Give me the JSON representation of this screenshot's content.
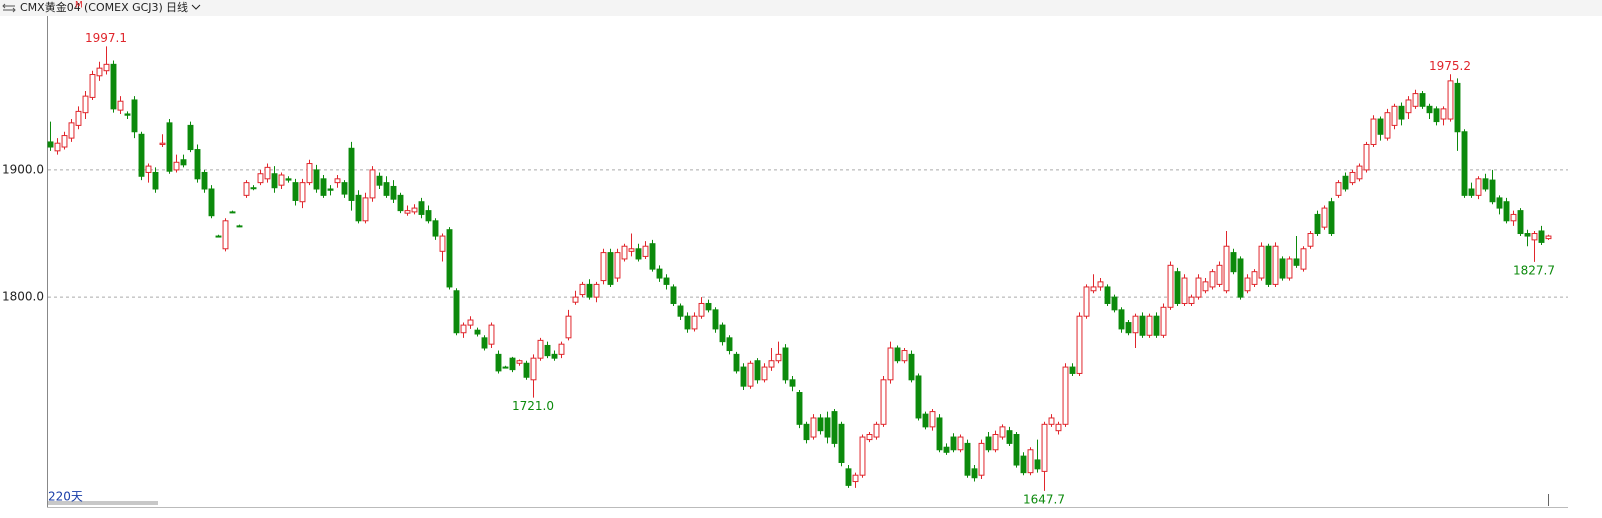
{
  "chart_data": {
    "type": "candlestick",
    "header": {
      "name": "CMX黄金04",
      "flag": "M",
      "code": "(COMEX GCJ3)",
      "period": "日线"
    },
    "period_count": "220天",
    "up_color": "#e0262c",
    "down_color": "#0c8a0c",
    "grid": true,
    "ylim": [
      1635,
      2021
    ],
    "yticks": [
      {
        "value": 1800,
        "label": "1800.0"
      },
      {
        "value": 1900,
        "label": "1900.0"
      }
    ],
    "annotations": [
      {
        "value": 1997.1,
        "label": "1997.1"
      },
      {
        "value": 1721,
        "label": "1721.0"
      },
      {
        "value": 1647.7,
        "label": "1647.7"
      },
      {
        "value": 1975.2,
        "label": "1975.2"
      },
      {
        "value": 1827.7,
        "label": "1827.7"
      }
    ],
    "candles": [
      [
        1922,
        1938,
        1915,
        1918
      ],
      [
        1915,
        1925,
        1912,
        1921
      ],
      [
        1918,
        1930,
        1916,
        1927
      ],
      [
        1925,
        1940,
        1922,
        1937
      ],
      [
        1935,
        1950,
        1932,
        1946
      ],
      [
        1945,
        1962,
        1940,
        1958
      ],
      [
        1957,
        1978,
        1955,
        1975
      ],
      [
        1974,
        1985,
        1970,
        1980
      ],
      [
        1978,
        1997.1,
        1975,
        1983
      ],
      [
        1983,
        1986,
        1945,
        1948
      ],
      [
        1947,
        1958,
        1944,
        1954
      ],
      [
        1944,
        1946,
        1940,
        1943
      ],
      [
        1955,
        1958,
        1925,
        1930
      ],
      [
        1928,
        1930,
        1892,
        1895
      ],
      [
        1898,
        1905,
        1890,
        1903
      ],
      [
        1898,
        1902,
        1882,
        1885
      ],
      [
        1920,
        1928,
        1918,
        1921
      ],
      [
        1937,
        1940,
        1897,
        1899
      ],
      [
        1900,
        1912,
        1898,
        1906
      ],
      [
        1908,
        1912,
        1902,
        1904
      ],
      [
        1935,
        1938,
        1914,
        1916
      ],
      [
        1916,
        1920,
        1890,
        1893
      ],
      [
        1898,
        1900,
        1882,
        1885
      ],
      [
        1885,
        1888,
        1862,
        1864
      ],
      [
        1848,
        1849,
        1847,
        1848
      ],
      [
        1838,
        1862,
        1836,
        1860
      ],
      [
        1867,
        1868,
        1866,
        1867
      ],
      [
        1856,
        1857,
        1855,
        1856
      ],
      [
        1880,
        1892,
        1878,
        1890
      ],
      [
        1886,
        1888,
        1884,
        1886
      ],
      [
        1890,
        1900,
        1888,
        1897
      ],
      [
        1893,
        1905,
        1890,
        1902
      ],
      [
        1897,
        1903,
        1882,
        1886
      ],
      [
        1888,
        1898,
        1885,
        1896
      ],
      [
        1893,
        1895,
        1890,
        1892
      ],
      [
        1890,
        1893,
        1872,
        1876
      ],
      [
        1875,
        1893,
        1870,
        1890
      ],
      [
        1890,
        1908,
        1888,
        1905
      ],
      [
        1900,
        1904,
        1882,
        1885
      ],
      [
        1893,
        1896,
        1878,
        1880
      ],
      [
        1885,
        1888,
        1880,
        1884
      ],
      [
        1890,
        1896,
        1886,
        1893
      ],
      [
        1890,
        1892,
        1878,
        1881
      ],
      [
        1917,
        1922,
        1868,
        1876
      ],
      [
        1880,
        1884,
        1858,
        1860
      ],
      [
        1860,
        1882,
        1858,
        1878
      ],
      [
        1878,
        1903,
        1875,
        1900
      ],
      [
        1895,
        1898,
        1885,
        1888
      ],
      [
        1890,
        1895,
        1878,
        1880
      ],
      [
        1887,
        1892,
        1874,
        1877
      ],
      [
        1880,
        1882,
        1866,
        1868
      ],
      [
        1866,
        1872,
        1864,
        1868
      ],
      [
        1867,
        1873,
        1865,
        1870
      ],
      [
        1875,
        1878,
        1862,
        1865
      ],
      [
        1868,
        1872,
        1858,
        1860
      ],
      [
        1860,
        1862,
        1845,
        1848
      ],
      [
        1836,
        1850,
        1828,
        1848
      ],
      [
        1853,
        1855,
        1806,
        1808
      ],
      [
        1805,
        1807,
        1770,
        1772
      ],
      [
        1772,
        1780,
        1768,
        1778
      ],
      [
        1778,
        1785,
        1775,
        1782
      ],
      [
        1774,
        1776,
        1769,
        1771
      ],
      [
        1768,
        1770,
        1758,
        1760
      ],
      [
        1763,
        1780,
        1760,
        1778
      ],
      [
        1755,
        1758,
        1740,
        1742
      ],
      [
        1745,
        1746,
        1744,
        1745
      ],
      [
        1752,
        1753,
        1741,
        1743
      ],
      [
        1748,
        1751,
        1746,
        1750
      ],
      [
        1748,
        1750,
        1735,
        1737
      ],
      [
        1735,
        1755,
        1721,
        1752
      ],
      [
        1752,
        1768,
        1750,
        1766
      ],
      [
        1762,
        1765,
        1752,
        1754
      ],
      [
        1755,
        1758,
        1750,
        1752
      ],
      [
        1755,
        1765,
        1752,
        1763
      ],
      [
        1768,
        1790,
        1766,
        1785
      ],
      [
        1796,
        1805,
        1794,
        1800
      ],
      [
        1802,
        1812,
        1800,
        1810
      ],
      [
        1810,
        1814,
        1798,
        1800
      ],
      [
        1800,
        1812,
        1796,
        1810
      ],
      [
        1813,
        1838,
        1810,
        1835
      ],
      [
        1835,
        1838,
        1808,
        1810
      ],
      [
        1815,
        1838,
        1812,
        1835
      ],
      [
        1830,
        1842,
        1828,
        1840
      ],
      [
        1836,
        1850,
        1832,
        1838
      ],
      [
        1838,
        1842,
        1828,
        1830
      ],
      [
        1832,
        1844,
        1830,
        1840
      ],
      [
        1842,
        1845,
        1820,
        1822
      ],
      [
        1822,
        1825,
        1812,
        1815
      ],
      [
        1815,
        1818,
        1806,
        1810
      ],
      [
        1808,
        1810,
        1793,
        1795
      ],
      [
        1793,
        1795,
        1782,
        1785
      ],
      [
        1785,
        1788,
        1772,
        1775
      ],
      [
        1775,
        1788,
        1773,
        1785
      ],
      [
        1785,
        1800,
        1783,
        1795
      ],
      [
        1795,
        1798,
        1788,
        1790
      ],
      [
        1790,
        1792,
        1772,
        1775
      ],
      [
        1778,
        1780,
        1762,
        1765
      ],
      [
        1768,
        1770,
        1755,
        1758
      ],
      [
        1755,
        1757,
        1740,
        1742
      ],
      [
        1745,
        1748,
        1727,
        1730
      ],
      [
        1730,
        1750,
        1728,
        1748
      ],
      [
        1750,
        1752,
        1732,
        1735
      ],
      [
        1735,
        1748,
        1733,
        1745
      ],
      [
        1745,
        1760,
        1742,
        1750
      ],
      [
        1750,
        1765,
        1748,
        1755
      ],
      [
        1760,
        1763,
        1732,
        1735
      ],
      [
        1735,
        1738,
        1726,
        1730
      ],
      [
        1725,
        1727,
        1697,
        1700
      ],
      [
        1700,
        1702,
        1685,
        1688
      ],
      [
        1690,
        1708,
        1688,
        1705
      ],
      [
        1705,
        1708,
        1692,
        1695
      ],
      [
        1705,
        1710,
        1685,
        1690
      ],
      [
        1710,
        1712,
        1682,
        1685
      ],
      [
        1700,
        1702,
        1667,
        1670
      ],
      [
        1665,
        1668,
        1650,
        1652
      ],
      [
        1655,
        1662,
        1650,
        1660
      ],
      [
        1660,
        1692,
        1658,
        1690
      ],
      [
        1688,
        1694,
        1686,
        1692
      ],
      [
        1690,
        1702,
        1688,
        1700
      ],
      [
        1700,
        1738,
        1698,
        1735
      ],
      [
        1735,
        1765,
        1732,
        1760
      ],
      [
        1760,
        1762,
        1748,
        1750
      ],
      [
        1750,
        1760,
        1748,
        1758
      ],
      [
        1755,
        1758,
        1733,
        1735
      ],
      [
        1738,
        1740,
        1703,
        1705
      ],
      [
        1708,
        1710,
        1696,
        1698
      ],
      [
        1698,
        1712,
        1695,
        1710
      ],
      [
        1705,
        1708,
        1678,
        1680
      ],
      [
        1682,
        1685,
        1676,
        1678
      ],
      [
        1690,
        1693,
        1678,
        1680
      ],
      [
        1680,
        1692,
        1678,
        1690
      ],
      [
        1685,
        1688,
        1658,
        1660
      ],
      [
        1665,
        1668,
        1655,
        1658
      ],
      [
        1660,
        1688,
        1657,
        1685
      ],
      [
        1690,
        1694,
        1678,
        1680
      ],
      [
        1680,
        1695,
        1678,
        1692
      ],
      [
        1690,
        1700,
        1688,
        1698
      ],
      [
        1695,
        1698,
        1683,
        1685
      ],
      [
        1692,
        1694,
        1666,
        1668
      ],
      [
        1675,
        1678,
        1660,
        1662
      ],
      [
        1662,
        1682,
        1660,
        1680
      ],
      [
        1672,
        1688,
        1662,
        1665
      ],
      [
        1663,
        1702,
        1647.7,
        1700
      ],
      [
        1700,
        1708,
        1698,
        1705
      ],
      [
        1695,
        1702,
        1692,
        1700
      ],
      [
        1700,
        1748,
        1698,
        1745
      ],
      [
        1745,
        1748,
        1738,
        1740
      ],
      [
        1740,
        1788,
        1738,
        1785
      ],
      [
        1785,
        1810,
        1783,
        1808
      ],
      [
        1805,
        1818,
        1803,
        1808
      ],
      [
        1808,
        1815,
        1805,
        1812
      ],
      [
        1808,
        1810,
        1793,
        1795
      ],
      [
        1800,
        1802,
        1788,
        1790
      ],
      [
        1790,
        1792,
        1772,
        1775
      ],
      [
        1780,
        1782,
        1770,
        1772
      ],
      [
        1772,
        1787,
        1760,
        1785
      ],
      [
        1785,
        1788,
        1768,
        1770
      ],
      [
        1770,
        1787,
        1768,
        1785
      ],
      [
        1785,
        1788,
        1768,
        1770
      ],
      [
        1770,
        1795,
        1768,
        1792
      ],
      [
        1792,
        1828,
        1790,
        1825
      ],
      [
        1820,
        1823,
        1793,
        1795
      ],
      [
        1795,
        1818,
        1793,
        1815
      ],
      [
        1795,
        1802,
        1793,
        1800
      ],
      [
        1800,
        1818,
        1798,
        1815
      ],
      [
        1805,
        1815,
        1803,
        1812
      ],
      [
        1808,
        1822,
        1806,
        1820
      ],
      [
        1810,
        1828,
        1808,
        1825
      ],
      [
        1805,
        1852,
        1803,
        1840
      ],
      [
        1835,
        1838,
        1818,
        1820
      ],
      [
        1830,
        1832,
        1798,
        1800
      ],
      [
        1805,
        1818,
        1803,
        1815
      ],
      [
        1810,
        1822,
        1808,
        1820
      ],
      [
        1815,
        1843,
        1813,
        1840
      ],
      [
        1840,
        1842,
        1808,
        1810
      ],
      [
        1810,
        1843,
        1808,
        1840
      ],
      [
        1830,
        1832,
        1813,
        1815
      ],
      [
        1815,
        1832,
        1813,
        1830
      ],
      [
        1830,
        1848,
        1823,
        1825
      ],
      [
        1822,
        1840,
        1820,
        1838
      ],
      [
        1840,
        1852,
        1838,
        1850
      ],
      [
        1865,
        1868,
        1848,
        1850
      ],
      [
        1855,
        1872,
        1853,
        1870
      ],
      [
        1875,
        1878,
        1848,
        1850
      ],
      [
        1880,
        1892,
        1878,
        1890
      ],
      [
        1895,
        1898,
        1883,
        1885
      ],
      [
        1890,
        1900,
        1888,
        1898
      ],
      [
        1893,
        1905,
        1891,
        1903
      ],
      [
        1900,
        1922,
        1898,
        1920
      ],
      [
        1920,
        1943,
        1918,
        1940
      ],
      [
        1940,
        1942,
        1923,
        1928
      ],
      [
        1925,
        1948,
        1923,
        1945
      ],
      [
        1935,
        1952,
        1932,
        1950
      ],
      [
        1950,
        1953,
        1935,
        1940
      ],
      [
        1945,
        1958,
        1940,
        1955
      ],
      [
        1950,
        1963,
        1948,
        1960
      ],
      [
        1960,
        1962,
        1948,
        1950
      ],
      [
        1950,
        1952,
        1940,
        1945
      ],
      [
        1948,
        1950,
        1935,
        1938
      ],
      [
        1940,
        1950,
        1935,
        1948
      ],
      [
        1940,
        1975.2,
        1938,
        1970
      ],
      [
        1968,
        1972,
        1915,
        1930
      ],
      [
        1930,
        1932,
        1878,
        1880
      ],
      [
        1885,
        1890,
        1878,
        1880
      ],
      [
        1880,
        1895,
        1877,
        1893
      ],
      [
        1893,
        1897,
        1883,
        1885
      ],
      [
        1892,
        1900,
        1873,
        1875
      ],
      [
        1878,
        1880,
        1865,
        1870
      ],
      [
        1875,
        1878,
        1858,
        1860
      ],
      [
        1860,
        1868,
        1856,
        1865
      ],
      [
        1868,
        1870,
        1848,
        1850
      ],
      [
        1850,
        1853,
        1840,
        1848
      ],
      [
        1845,
        1852,
        1827.7,
        1850
      ],
      [
        1852,
        1856,
        1841,
        1843
      ],
      [
        1846,
        1849,
        1845,
        1848
      ]
    ]
  }
}
